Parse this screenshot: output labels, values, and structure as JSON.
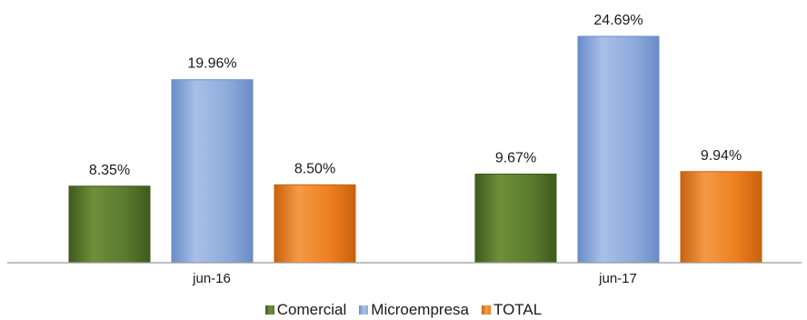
{
  "chart_data": {
    "type": "bar",
    "categories": [
      "jun-16",
      "jun-17"
    ],
    "series": [
      {
        "name": "Comercial",
        "values": [
          8.35,
          9.67
        ],
        "labels": [
          "8.35%",
          "9.67%"
        ],
        "color": "#5a7a2e",
        "color_light": "#6e8f3a",
        "color_dark": "#3f5a1e"
      },
      {
        "name": "Microempresa",
        "values": [
          19.96,
          24.69
        ],
        "labels": [
          "19.96%",
          "24.69%"
        ],
        "color": "#8eaadb",
        "color_light": "#a8c0e8",
        "color_dark": "#6a8cc8"
      },
      {
        "name": "TOTAL",
        "values": [
          8.5,
          9.94
        ],
        "labels": [
          "8.50%",
          "9.94%"
        ],
        "color": "#ed7d1e",
        "color_light": "#f59a45",
        "color_dark": "#c8620e"
      }
    ],
    "ylim": [
      0,
      24.69
    ],
    "grid": false,
    "legend_position": "bottom"
  }
}
